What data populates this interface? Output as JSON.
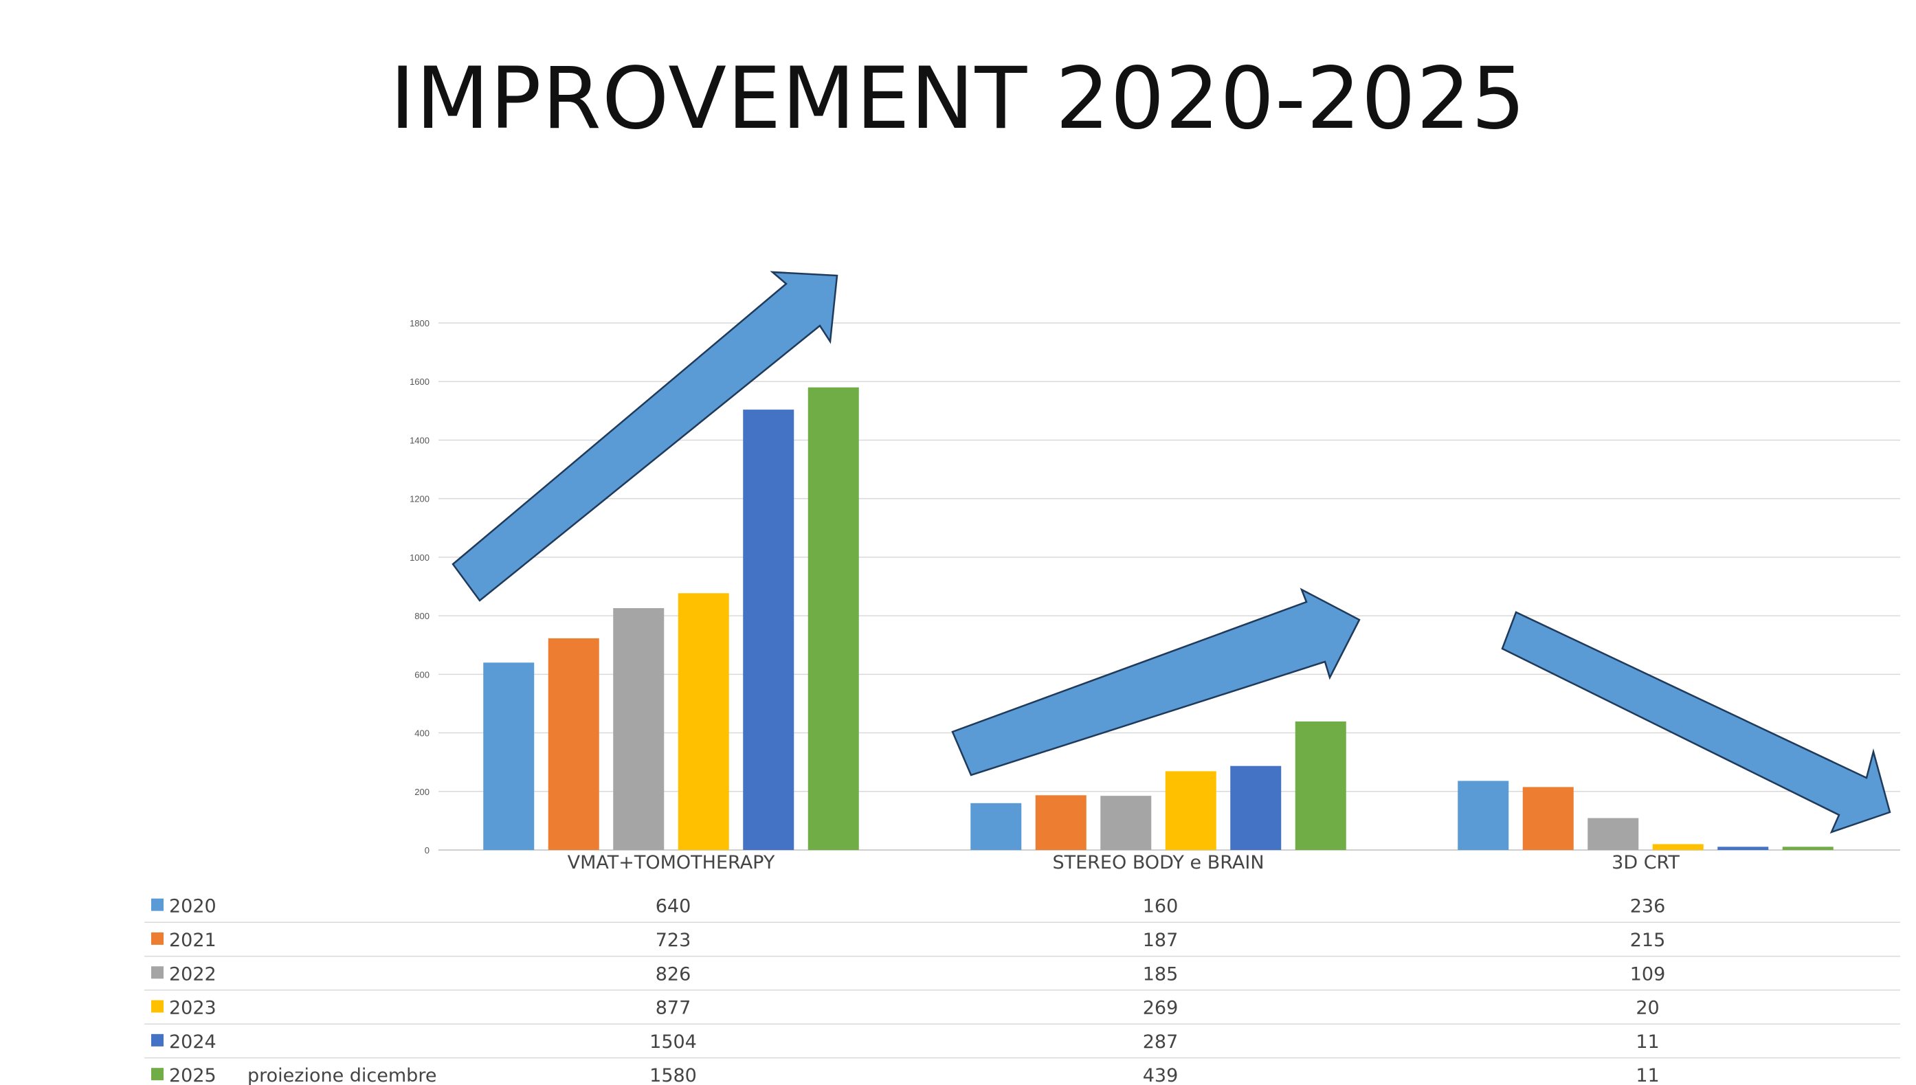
{
  "title": "IMPROVEMENT 2020-2025",
  "chart_data": {
    "type": "bar",
    "title": "",
    "xlabel": "",
    "ylabel": "",
    "ylim": [
      0,
      1800
    ],
    "yticks": [
      "0",
      "200",
      "400",
      "600",
      "800",
      "1000",
      "1200",
      "1400",
      "1600",
      "1800"
    ],
    "grid": true,
    "legend": "data-table-bottom",
    "categories": [
      "VMAT+TOMOTHERAPY",
      "STEREO BODY e BRAIN",
      "3D  CRT"
    ],
    "series": [
      {
        "name": "2020",
        "color": "#5B9BD5",
        "values": [
          640,
          160,
          236
        ]
      },
      {
        "name": "2021",
        "color": "#ED7D31",
        "values": [
          723,
          187,
          215
        ]
      },
      {
        "name": "2022",
        "color": "#A5A5A5",
        "values": [
          826,
          185,
          109
        ]
      },
      {
        "name": "2023",
        "color": "#FFC000",
        "values": [
          877,
          269,
          20
        ]
      },
      {
        "name": "2024",
        "color": "#4472C4",
        "values": [
          1504,
          287,
          11
        ]
      },
      {
        "name": "2025",
        "note": "proiezione dicembre",
        "color": "#70AD47",
        "values": [
          1580,
          439,
          11
        ]
      }
    ],
    "annotations": {
      "arrows": [
        {
          "name": "trend-arrow-up-vmat",
          "direction": "up"
        },
        {
          "name": "trend-arrow-up-stereo",
          "direction": "up"
        },
        {
          "name": "trend-arrow-down-3dcrt",
          "direction": "down"
        }
      ],
      "arrow_fill": "#5B9BD5",
      "arrow_stroke": "#1F3A5A"
    },
    "grid_color": "#D9D9D9"
  }
}
